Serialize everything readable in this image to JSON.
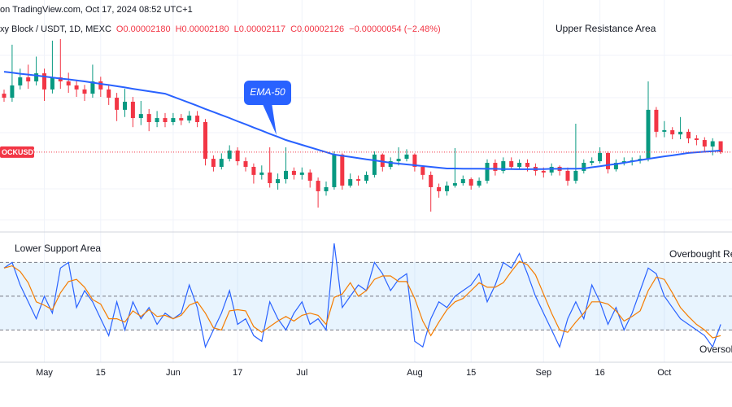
{
  "header": {
    "source": "on TradingView.com, Oct 17, 2024 08:52 UTC+1",
    "symbol": "xy Block / USDT, 1D, MEXC",
    "open": "O0.00002180",
    "high": "H0.00002180",
    "low": "L0.00002117",
    "close": "C0.00002126",
    "change": "−0.00000054 (−2.48%)"
  },
  "chart_data": [
    {
      "type": "candlestick",
      "categories": [
        null,
        null,
        null,
        null,
        null,
        "May",
        null,
        null,
        null,
        null,
        null,
        null,
        "15",
        null,
        null,
        null,
        null,
        null,
        null,
        null,
        null,
        "Jun",
        null,
        null,
        null,
        null,
        null,
        null,
        null,
        "17",
        null,
        null,
        null,
        null,
        null,
        null,
        null,
        "Jul",
        null,
        null,
        null,
        null,
        null,
        null,
        null,
        null,
        null,
        null,
        null,
        null,
        null,
        "Aug",
        null,
        null,
        null,
        null,
        null,
        null,
        "15",
        null,
        null,
        null,
        null,
        null,
        null,
        null,
        null,
        "Sep",
        null,
        null,
        null,
        null,
        null,
        null,
        "16",
        null,
        null,
        null,
        null,
        null,
        null,
        null,
        "Oct",
        null,
        null,
        null,
        null,
        null,
        null,
        null
      ],
      "open": [
        2.416e-05,
        2.396e-05,
        2.457e-05,
        2.497e-05,
        2.477e-05,
        2.517e-05,
        2.437e-05,
        2.497e-05,
        2.477e-05,
        2.457e-05,
        2.437e-05,
        2.416e-05,
        2.477e-05,
        2.437e-05,
        2.396e-05,
        2.336e-05,
        2.376e-05,
        2.295e-05,
        2.315e-05,
        2.275e-05,
        2.295e-05,
        2.275e-05,
        2.295e-05,
        2.283e-05,
        2.307e-05,
        2.275e-05,
        2.093e-05,
        2.053e-05,
        2.093e-05,
        2.134e-05,
        2.081e-05,
        2.053e-05,
        2.013e-05,
        2.025e-05,
        1.972e-05,
        1.992e-05,
        2.033e-05,
        2.013e-05,
        2.025e-05,
        1.984e-05,
        1.932e-05,
        1.952e-05,
        2.114e-05,
        1.96e-05,
        1.992e-05,
        1.984e-05,
        2.013e-05,
        2.114e-05,
        2.053e-05,
        2.081e-05,
        2.093e-05,
        2.114e-05,
        2.053e-05,
        2.013e-05,
        1.952e-05,
        1.932e-05,
        1.96e-05,
        1.972e-05,
        1.992e-05,
        1.96e-05,
        1.984e-05,
        2.073e-05,
        2.033e-05,
        2.081e-05,
        2.053e-05,
        2.073e-05,
        2.053e-05,
        2.033e-05,
        2.025e-05,
        2.053e-05,
        2.033e-05,
        1.984e-05,
        2.033e-05,
        2.073e-05,
        2.081e-05,
        2.122e-05,
        2.041e-05,
        2.073e-05,
        2.081e-05,
        2.085e-05,
        2.093e-05,
        2.336e-05,
        2.227e-05,
        2.235e-05,
        2.214e-05,
        2.227e-05,
        2.194e-05,
        2.186e-05,
        2.154e-05,
        2.18e-05
      ],
      "high": [
        2.436e-05,
        2.659e-05,
        2.54e-05,
        2.56e-05,
        2.6e-05,
        2.54e-05,
        2.679e-05,
        2.687e-05,
        2.52e-05,
        2.48e-05,
        2.46e-05,
        2.56e-05,
        2.5e-05,
        2.46e-05,
        2.42e-05,
        2.44e-05,
        2.4e-05,
        2.38e-05,
        2.34e-05,
        2.33e-05,
        2.32e-05,
        2.32e-05,
        2.315e-05,
        2.33e-05,
        2.33e-05,
        2.29e-05,
        2.11e-05,
        2.12e-05,
        2.16e-05,
        2.15e-05,
        2.1e-05,
        2.07e-05,
        2.06e-05,
        2.15e-05,
        2.02e-05,
        2.15e-05,
        2.05e-05,
        2.05e-05,
        2.04e-05,
        2e-05,
        1.98e-05,
        2.13e-05,
        2.12e-05,
        2.02e-05,
        2.01e-05,
        2.03e-05,
        2.13e-05,
        2.12e-05,
        2.1e-05,
        2.15e-05,
        2.14e-05,
        2.12e-05,
        2.06e-05,
        2.03e-05,
        1.97e-05,
        1.98e-05,
        2.146e-05,
        2.01e-05,
        2e-05,
        2e-05,
        2.09e-05,
        2.09e-05,
        2.1e-05,
        2.1e-05,
        2.09e-05,
        2.09e-05,
        2.07e-05,
        2.05e-05,
        2.07e-05,
        2.06e-05,
        2.05e-05,
        2.267e-05,
        2.09e-05,
        2.1e-05,
        2.15e-05,
        2.13e-05,
        2.09e-05,
        2.1e-05,
        2.1e-05,
        2.11e-05,
        2.477e-05,
        2.35e-05,
        2.28e-05,
        2.25e-05,
        2.3e-05,
        2.24e-05,
        2.21e-05,
        2.2e-05,
        2.195e-05,
        2.18e-05
      ],
      "low": [
        2.376e-05,
        2.376e-05,
        2.437e-05,
        2.44e-05,
        2.457e-05,
        2.38e-05,
        2.417e-05,
        2.44e-05,
        2.42e-05,
        2.4e-05,
        2.38e-05,
        2.396e-05,
        2.4e-05,
        2.36e-05,
        2.28e-05,
        2.3e-05,
        2.25e-05,
        2.26e-05,
        2.23e-05,
        2.25e-05,
        2.25e-05,
        2.26e-05,
        2.26e-05,
        2.27e-05,
        2.25e-05,
        2.06e-05,
        2.03e-05,
        2.04e-05,
        2.08e-05,
        2.06e-05,
        2.03e-05,
        1.97e-05,
        1.99e-05,
        1.95e-05,
        1.94e-05,
        1.97e-05,
        1.99e-05,
        1.99e-05,
        1.95e-05,
        1.851e-05,
        1.91e-05,
        1.94e-05,
        1.94e-05,
        1.95e-05,
        1.96e-05,
        1.97e-05,
        2e-05,
        2.03e-05,
        2.04e-05,
        2.06e-05,
        2.08e-05,
        2.03e-05,
        1.99e-05,
        1.831e-05,
        1.9e-05,
        1.91e-05,
        1.95e-05,
        1.96e-05,
        1.94e-05,
        1.95e-05,
        1.97e-05,
        2.01e-05,
        2.02e-05,
        2.04e-05,
        2.04e-05,
        2.03e-05,
        2.01e-05,
        2e-05,
        2.01e-05,
        2.01e-05,
        1.96e-05,
        1.97e-05,
        2.02e-05,
        2.06e-05,
        2.07e-05,
        2.02e-05,
        2.03e-05,
        2.06e-05,
        2.06e-05,
        2.07e-05,
        2.08e-05,
        2.2e-05,
        2.2e-05,
        2.19e-05,
        2.19e-05,
        2.17e-05,
        2.16e-05,
        2.13e-05,
        2.11e-05,
        2.117e-05
      ],
      "close": [
        2.396e-05,
        2.457e-05,
        2.497e-05,
        2.477e-05,
        2.517e-05,
        2.437e-05,
        2.497e-05,
        2.477e-05,
        2.457e-05,
        2.437e-05,
        2.416e-05,
        2.477e-05,
        2.437e-05,
        2.396e-05,
        2.336e-05,
        2.376e-05,
        2.295e-05,
        2.315e-05,
        2.275e-05,
        2.295e-05,
        2.275e-05,
        2.295e-05,
        2.283e-05,
        2.307e-05,
        2.275e-05,
        2.093e-05,
        2.053e-05,
        2.093e-05,
        2.134e-05,
        2.081e-05,
        2.053e-05,
        2.013e-05,
        2.025e-05,
        1.972e-05,
        1.992e-05,
        2.033e-05,
        2.013e-05,
        2.025e-05,
        1.984e-05,
        1.932e-05,
        1.952e-05,
        2.114e-05,
        1.96e-05,
        1.992e-05,
        1.984e-05,
        2.013e-05,
        2.114e-05,
        2.053e-05,
        2.081e-05,
        2.093e-05,
        2.114e-05,
        2.053e-05,
        2.013e-05,
        1.952e-05,
        1.932e-05,
        1.96e-05,
        1.972e-05,
        1.992e-05,
        1.96e-05,
        1.984e-05,
        2.073e-05,
        2.033e-05,
        2.081e-05,
        2.053e-05,
        2.073e-05,
        2.053e-05,
        2.033e-05,
        2.025e-05,
        2.053e-05,
        2.033e-05,
        1.984e-05,
        2.033e-05,
        2.073e-05,
        2.081e-05,
        2.122e-05,
        2.041e-05,
        2.073e-05,
        2.081e-05,
        2.085e-05,
        2.093e-05,
        2.336e-05,
        2.227e-05,
        2.235e-05,
        2.214e-05,
        2.227e-05,
        2.194e-05,
        2.186e-05,
        2.154e-05,
        2.18e-05,
        2.126e-05
      ],
      "up_color": "#089981",
      "down_color": "#f23645",
      "ema": {
        "label": "EMA-50",
        "color": "#2962ff",
        "values": [
          2.525e-05,
          2.52e-05,
          2.515e-05,
          2.511e-05,
          2.506e-05,
          2.501e-05,
          2.496e-05,
          2.491e-05,
          2.487e-05,
          2.482e-05,
          2.477e-05,
          2.471e-05,
          2.465e-05,
          2.459e-05,
          2.453e-05,
          2.447e-05,
          2.44e-05,
          2.434e-05,
          2.428e-05,
          2.422e-05,
          2.416e-05,
          2.401e-05,
          2.386e-05,
          2.371e-05,
          2.356e-05,
          2.34e-05,
          2.325e-05,
          2.31e-05,
          2.295e-05,
          2.279e-05,
          2.264e-05,
          2.248e-05,
          2.233e-05,
          2.217e-05,
          2.202e-05,
          2.186e-05,
          2.174e-05,
          2.162e-05,
          2.15e-05,
          2.138e-05,
          2.126e-05,
          2.114e-05,
          2.108e-05,
          2.102e-05,
          2.096e-05,
          2.09e-05,
          2.085e-05,
          2.079e-05,
          2.073e-05,
          2.069e-05,
          2.065e-05,
          2.061e-05,
          2.057e-05,
          2.053e-05,
          2.049e-05,
          2.045e-05,
          2.045e-05,
          2.044e-05,
          2.044e-05,
          2.044e-05,
          2.043e-05,
          2.043e-05,
          2.042e-05,
          2.042e-05,
          2.041e-05,
          2.041e-05,
          2.042e-05,
          2.042e-05,
          2.043e-05,
          2.043e-05,
          2.044e-05,
          2.044e-05,
          2.045e-05,
          2.051e-05,
          2.056e-05,
          2.062e-05,
          2.067e-05,
          2.073e-05,
          2.08e-05,
          2.086e-05,
          2.093e-05,
          2.099e-05,
          2.105e-05,
          2.11e-05,
          2.116e-05,
          2.122e-05,
          2.125e-05,
          2.128e-05,
          2.131e-05,
          2.134e-05
        ]
      },
      "last_price_label": "OCKUSDT",
      "annotations": [
        "Upper Resistance Area"
      ],
      "ylim": [
        1.75e-05,
        2.8e-05
      ]
    },
    {
      "type": "line",
      "series": [
        {
          "color": "#2962ff",
          "values": [
            75,
            80,
            60,
            45,
            30,
            50,
            35,
            75,
            80,
            40,
            55,
            45,
            30,
            15,
            45,
            20,
            45,
            30,
            40,
            25,
            35,
            30,
            35,
            60,
            40,
            5,
            20,
            35,
            55,
            25,
            30,
            15,
            10,
            45,
            30,
            20,
            35,
            45,
            25,
            30,
            20,
            97,
            40,
            50,
            60,
            55,
            80,
            70,
            55,
            65,
            70,
            10,
            5,
            30,
            45,
            40,
            50,
            55,
            60,
            70,
            45,
            60,
            80,
            75,
            88,
            70,
            50,
            35,
            20,
            5,
            30,
            45,
            30,
            60,
            45,
            25,
            40,
            20,
            35,
            55,
            75,
            70,
            50,
            40,
            30,
            25,
            20,
            15,
            5,
            25
          ]
        },
        {
          "color": "#f57c00",
          "values": [
            75,
            77,
            72,
            62,
            45,
            42,
            38,
            53,
            63,
            65,
            58,
            47,
            43,
            30,
            30,
            27,
            37,
            32,
            38,
            32,
            33,
            30,
            33,
            42,
            45,
            35,
            22,
            20,
            37,
            38,
            37,
            23,
            18,
            23,
            28,
            32,
            28,
            33,
            35,
            33,
            25,
            49,
            52,
            62,
            50,
            55,
            65,
            68,
            68,
            63,
            63,
            48,
            28,
            15,
            27,
            38,
            45,
            48,
            55,
            62,
            58,
            58,
            62,
            72,
            81,
            78,
            69,
            52,
            35,
            20,
            18,
            27,
            35,
            45,
            45,
            43,
            37,
            28,
            32,
            37,
            55,
            67,
            65,
            53,
            40,
            32,
            25,
            20,
            13,
            15
          ]
        }
      ],
      "levels": [
        80,
        50,
        20
      ],
      "band_color": "#2196f3",
      "annotations": [
        "Lower Support Area",
        "Overbought Re",
        "Oversol"
      ],
      "ylim": [
        -5,
        102
      ]
    }
  ]
}
